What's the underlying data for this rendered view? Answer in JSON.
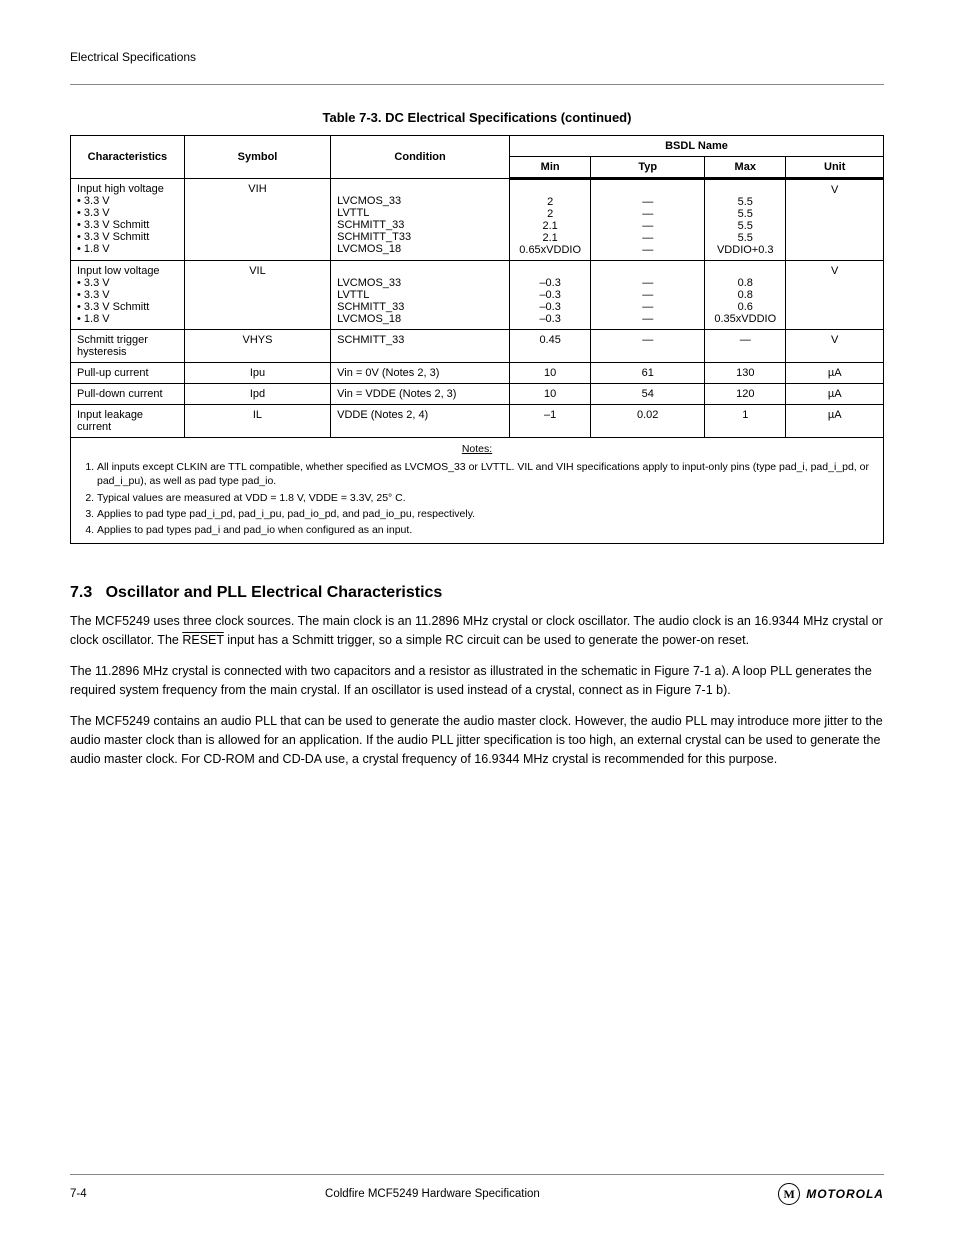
{
  "header": {
    "left": "Electrical Specifications",
    "right": ""
  },
  "table": {
    "title": "Table 7-3. DC Electrical Specifications (continued)",
    "headers": {
      "char": "Characteristics",
      "sym": "Symbol",
      "cond": "Condition",
      "min": "Min",
      "typ": "Typ",
      "max": "Max",
      "unit": "Unit",
      "group": "BSDL Name"
    },
    "rows": [
      {
        "char": "Input high voltage\n• 3.3 V\n• 3.3 V\n• 3.3 V Schmitt\n• 3.3 V Schmitt\n• 1.8 V",
        "sym": "VIH",
        "cond": "\nLVCMOS_33\nLVTTL\nSCHMITT_33\nSCHMITT_T33\nLVCMOS_18",
        "min": "\n2\n2\n2.1\n2.1\n0.65xVDDIO",
        "typ": "\n—\n—\n—\n—\n—",
        "max": "\n5.5\n5.5\n5.5\n5.5\nVDDIO+0.3",
        "unit": "V"
      },
      {
        "char": "Input low voltage\n• 3.3 V\n• 3.3 V\n• 3.3 V Schmitt\n• 1.8 V",
        "sym": "VIL",
        "cond": "\nLVCMOS_33\nLVTTL\nSCHMITT_33\nLVCMOS_18",
        "min": "\n–0.3\n–0.3\n–0.3\n–0.3",
        "typ": "\n—\n—\n—\n—",
        "max": "\n0.8\n0.8\n0.6\n0.35xVDDIO",
        "unit": "V"
      },
      {
        "char": "Schmitt trigger hysteresis",
        "sym": "VHYS",
        "cond": "SCHMITT_33",
        "min": "0.45",
        "typ": "—",
        "max": "—",
        "unit": "V"
      },
      {
        "char": "Pull-up current",
        "sym": "Ipu",
        "cond": "Vin = 0V (Notes 2, 3)",
        "min": "10",
        "typ": "61",
        "max": "130",
        "unit": "µA"
      },
      {
        "char": "Pull-down current",
        "sym": "Ipd",
        "cond": "Vin = VDDE (Notes 2, 3)",
        "min": "10",
        "typ": "54",
        "max": "120",
        "unit": "µA"
      },
      {
        "char": "Input leakage current",
        "sym": "IL",
        "cond": "VDDE (Notes 2, 4)",
        "min": "–1",
        "typ": "0.02",
        "max": "1",
        "unit": "µA"
      }
    ],
    "notes": {
      "title": "Notes:",
      "items": [
        "All inputs except CLKIN are TTL compatible, whether specified as LVCMOS_33 or LVTTL. VIL and VIH specifications apply to input-only pins (type pad_i, pad_i_pd, or pad_i_pu), as well as pad type pad_io.",
        "Typical values are measured at VDD = 1.8 V, VDDE = 3.3V, 25° C.",
        "Applies to pad type pad_i_pd, pad_i_pu, pad_io_pd, and pad_io_pu, respectively.",
        "Applies to pad types pad_i and pad_io when configured as an input."
      ]
    }
  },
  "section": {
    "number": "7.3",
    "title": "Oscillator and PLL Electrical Characteristics",
    "p1_a": "The MCF5249 uses three clock sources. The main clock is an 11.2896 MHz crystal or clock oscillator. The audio clock is an 16.9344 MHz crystal or clock oscillator. The ",
    "p1_span": "RESET",
    "p1_b": " input has a Schmitt trigger, so a simple RC circuit can be used to generate the power-on reset.",
    "p2": "The 11.2896 MHz crystal is connected with two capacitors and a resistor as illustrated in the schematic in Figure 7-1 a). A loop PLL generates the required system frequency from the main crystal. If an oscillator is used instead of a crystal, connect as in Figure 7-1 b).",
    "p3": "The MCF5249 contains an audio PLL that can be used to generate the audio master clock. However, the audio PLL may introduce more jitter to the audio master clock than is allowed for an application. If the audio PLL jitter specification is too high, an external crystal can be used to generate the audio master clock. For CD-ROM and CD-DA use, a crystal frequency of 16.9344 MHz crystal is recommended for this purpose."
  },
  "footer": {
    "left": "7-4",
    "center": "Coldfire MCF5249 Hardware Specification",
    "logo": "MOTOROLA"
  },
  "style": {
    "page_bg": "#ffffff",
    "text_color": "#000000",
    "rule_color": "#888888",
    "table_border": "#000000",
    "font_body_pt": 12.5,
    "font_table_pt": 11,
    "font_notes_pt": 10.5,
    "font_section_pt": 16
  }
}
